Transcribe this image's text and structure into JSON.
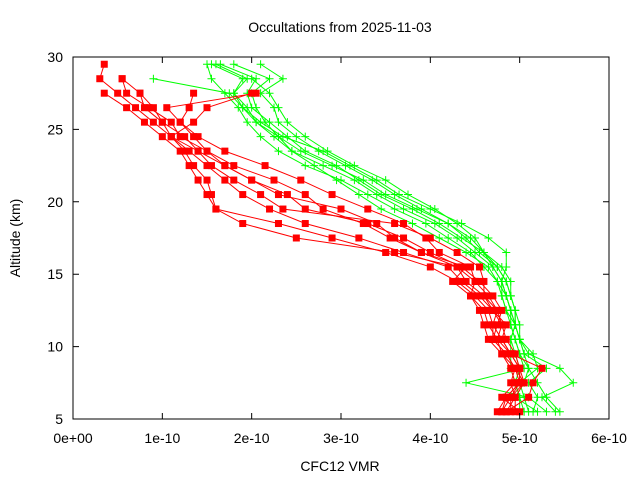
{
  "chart_data": {
    "type": "line",
    "title": "Occultations from 2025-11-03",
    "xlabel": "CFC12 VMR",
    "ylabel": "Altitude (km)",
    "xlim": [
      0,
      6e-10
    ],
    "ylim": [
      5,
      30
    ],
    "xticks": [
      0,
      1e-10,
      2e-10,
      3e-10,
      4e-10,
      5e-10,
      6e-10
    ],
    "xtick_labels": [
      "0e+00",
      "1e-10",
      "2e-10",
      "3e-10",
      "4e-10",
      "5e-10",
      "6e-10"
    ],
    "yticks": [
      5,
      10,
      15,
      20,
      25,
      30
    ],
    "ytick_labels": [
      "5",
      "10",
      "15",
      "20",
      "25",
      "30"
    ],
    "grid": false,
    "colors": {
      "red_series": "#ff0000",
      "green_series": "#00ff00"
    },
    "altitudes": [
      5.5,
      6.5,
      7.5,
      8.5,
      9.5,
      10.5,
      11.5,
      12.5,
      13.5,
      14.5,
      15.5,
      16.5,
      17.5,
      18.5,
      19.5,
      20.5,
      21.5,
      22.5,
      23.5,
      24.5,
      25.5,
      26.5,
      27.5,
      28.5,
      29.5
    ],
    "red_series": [
      [
        4.75e-10,
        4.85e-10,
        5e-10,
        5e-10,
        4.95e-10,
        4.85e-10,
        4.8e-10,
        4.7e-10,
        4.55e-10,
        4.35e-10,
        4.2e-10,
        3.7e-10,
        3.2e-10,
        2.6e-10,
        2.2e-10,
        1.9e-10,
        1.7e-10,
        1.5e-10,
        1.3e-10,
        1.1e-10,
        9e-11,
        7e-11,
        5e-11,
        3e-11,
        3.5e-11
      ],
      [
        4.8e-10,
        4.9e-10,
        5.05e-10,
        5e-10,
        4.9e-10,
        4.8e-10,
        4.7e-10,
        4.65e-10,
        4.5e-10,
        4.3e-10,
        4e-10,
        3.5e-10,
        2.9e-10,
        2.3e-10,
        1.6e-10,
        1.5e-10,
        1.4e-10,
        1.3e-10,
        1.2e-10,
        1e-10,
        8e-11,
        6e-11,
        3.5e-11,
        null,
        null
      ],
      [
        4.85e-10,
        5.1e-10,
        5.15e-10,
        5.25e-10,
        4.9e-10,
        4.75e-10,
        4.65e-10,
        4.6e-10,
        4.45e-10,
        4.25e-10,
        4.4e-10,
        3.9e-10,
        3.6e-10,
        3.4e-10,
        3e-10,
        2.3e-10,
        2e-10,
        1.7e-10,
        1.5e-10,
        1.2e-10,
        1.1e-10,
        8.5e-11,
        6e-11,
        5.5e-11,
        null
      ],
      [
        4.95e-10,
        4.95e-10,
        4.9e-10,
        4.95e-10,
        4.85e-10,
        4.7e-10,
        4.75e-10,
        4.8e-10,
        4.7e-10,
        4.55e-10,
        4.35e-10,
        4e-10,
        3.7e-10,
        3.3e-10,
        2.6e-10,
        2.4e-10,
        2e-10,
        1.7e-10,
        1.4e-10,
        1.25e-10,
        1e-10,
        8e-11,
        7.5e-11,
        null,
        null
      ],
      [
        5e-10,
        4.8e-10,
        4.95e-10,
        4.9e-10,
        4.8e-10,
        4.65e-10,
        4.6e-10,
        4.55e-10,
        4.45e-10,
        4.5e-10,
        4.45e-10,
        4.1e-10,
        3.95e-10,
        3.7e-10,
        3.3e-10,
        2.9e-10,
        2.55e-10,
        2.15e-10,
        1.7e-10,
        1.4e-10,
        1.2e-10,
        1.3e-10,
        1.35e-10,
        null,
        null
      ],
      [
        4.8e-10,
        4.85e-10,
        5e-10,
        5e-10,
        4.9e-10,
        4.8e-10,
        4.85e-10,
        4.7e-10,
        4.6e-10,
        4.6e-10,
        4.55e-10,
        4.3e-10,
        4e-10,
        3.6e-10,
        2.35e-10,
        2.1e-10,
        1.8e-10,
        1.55e-10,
        1.4e-10,
        1.1e-10,
        1.35e-10,
        1.5e-10,
        2e-10,
        null,
        null
      ],
      [
        4.9e-10,
        4.9e-10,
        5e-10,
        4.95e-10,
        4.85e-10,
        4.7e-10,
        4.7e-10,
        4.75e-10,
        4.65e-10,
        4.5e-10,
        4.3e-10,
        3.6e-10,
        2.5e-10,
        1.9e-10,
        1.6e-10,
        1.55e-10,
        1.5e-10,
        1.35e-10,
        1.25e-10,
        1.1e-10,
        1e-10,
        9e-11,
        7.5e-11,
        5.5e-11,
        null
      ],
      [
        4.85e-10,
        4.95e-10,
        5.05e-10,
        4.95e-10,
        4.8e-10,
        4.75e-10,
        4.8e-10,
        4.75e-10,
        4.6e-10,
        4.4e-10,
        4.3e-10,
        3.9e-10,
        3.55e-10,
        3.25e-10,
        2.8e-10,
        2.6e-10,
        2.25e-10,
        1.8e-10,
        1.5e-10,
        1.35e-10,
        1.2e-10,
        1.05e-10,
        2.05e-10,
        null,
        null
      ]
    ],
    "green_series": [
      [
        5e-10,
        5e-10,
        4.95e-10,
        5e-10,
        4.95e-10,
        4.9e-10,
        4.95e-10,
        4.85e-10,
        4.8e-10,
        4.75e-10,
        4.6e-10,
        4.45e-10,
        4.2e-10,
        3.95e-10,
        3.6e-10,
        3.3e-10,
        3e-10,
        2.6e-10,
        2.3e-10,
        2.1e-10,
        1.95e-10,
        1.85e-10,
        1.7e-10,
        1.55e-10,
        1.5e-10
      ],
      [
        5.15e-10,
        5.2e-10,
        5.1e-10,
        5.3e-10,
        5.05e-10,
        5e-10,
        4.95e-10,
        4.9e-10,
        4.85e-10,
        4.8e-10,
        4.7e-10,
        4.5e-10,
        4.3e-10,
        4.05e-10,
        3.7e-10,
        3.4e-10,
        3.15e-10,
        2.8e-10,
        2.45e-10,
        2.25e-10,
        2.05e-10,
        1.95e-10,
        1.8e-10,
        1.95e-10,
        1.6e-10
      ],
      [
        5.4e-10,
        5.25e-10,
        5.6e-10,
        5.45e-10,
        5.1e-10,
        5e-10,
        4.95e-10,
        4.95e-10,
        4.9e-10,
        4.85e-10,
        4.75e-10,
        4.55e-10,
        4.4e-10,
        4.2e-10,
        3.9e-10,
        3.6e-10,
        3.35e-10,
        3.05e-10,
        2.75e-10,
        2.5e-10,
        2.3e-10,
        2.25e-10,
        2.1e-10,
        2.35e-10,
        2.1e-10
      ],
      [
        5.3e-10,
        5.1e-10,
        4.4e-10,
        5.05e-10,
        5e-10,
        4.95e-10,
        4.9e-10,
        4.85e-10,
        4.8e-10,
        4.8e-10,
        4.85e-10,
        4.85e-10,
        4.65e-10,
        4.35e-10,
        4e-10,
        3.65e-10,
        3.4e-10,
        3.1e-10,
        2.8e-10,
        2.35e-10,
        2.1e-10,
        1.9e-10,
        1.75e-10,
        9e-11,
        null
      ],
      [
        5.05e-10,
        5e-10,
        4.95e-10,
        4.9e-10,
        4.9e-10,
        4.9e-10,
        4.95e-10,
        4.9e-10,
        4.85e-10,
        4.8e-10,
        4.7e-10,
        4.6e-10,
        4.45e-10,
        4.2e-10,
        3.85e-10,
        3.5e-10,
        3.25e-10,
        2.9e-10,
        2.55e-10,
        2.3e-10,
        2.05e-10,
        1.9e-10,
        1.8e-10,
        1.9e-10,
        1.55e-10
      ],
      [
        5.2e-10,
        4.95e-10,
        5.05e-10,
        5.1e-10,
        5e-10,
        4.95e-10,
        4.9e-10,
        4.9e-10,
        4.85e-10,
        4.75e-10,
        4.65e-10,
        4.4e-10,
        4.1e-10,
        3.8e-10,
        3.45e-10,
        3.2e-10,
        2.95e-10,
        2.7e-10,
        2.45e-10,
        2.3e-10,
        2.15e-10,
        2.05e-10,
        2e-10,
        2.2e-10,
        1.8e-10
      ],
      [
        5.1e-10,
        5.05e-10,
        5e-10,
        5.2e-10,
        5.15e-10,
        5e-10,
        4.95e-10,
        4.95e-10,
        4.9e-10,
        4.85e-10,
        4.75e-10,
        4.6e-10,
        4.5e-10,
        4.3e-10,
        4.05e-10,
        3.75e-10,
        3.5e-10,
        3.15e-10,
        2.85e-10,
        2.6e-10,
        2.4e-10,
        2.3e-10,
        2.2e-10,
        2e-10,
        null
      ],
      [
        5.45e-10,
        5.3e-10,
        5.2e-10,
        5.1e-10,
        5.05e-10,
        5e-10,
        5e-10,
        4.95e-10,
        4.9e-10,
        4.9e-10,
        4.8e-10,
        4.6e-10,
        4.35e-10,
        4.1e-10,
        3.8e-10,
        3.45e-10,
        3.2e-10,
        2.95e-10,
        2.6e-10,
        2.4e-10,
        2.2e-10,
        2e-10,
        1.95e-10,
        2.05e-10,
        1.65e-10
      ]
    ]
  }
}
